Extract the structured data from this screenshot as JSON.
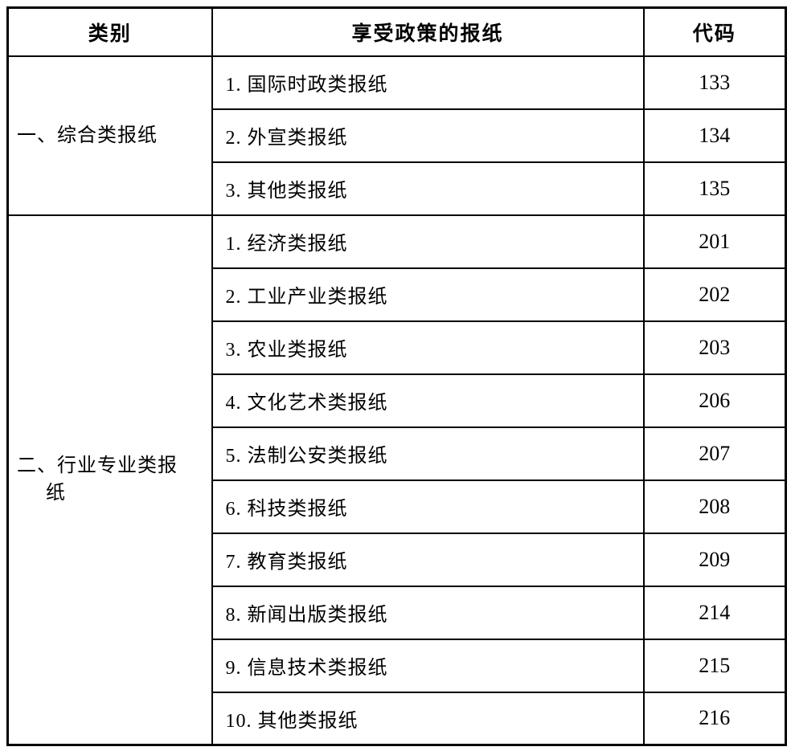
{
  "table": {
    "header": {
      "category": "类别",
      "newspaper": "享受政策的报纸",
      "code": "代码"
    },
    "groups": [
      {
        "category": "一、综合类报纸",
        "items": [
          {
            "name": "1. 国际时政类报纸",
            "code": "133"
          },
          {
            "name": "2. 外宣类报纸",
            "code": "134"
          },
          {
            "name": "3. 其他类报纸",
            "code": "135"
          }
        ]
      },
      {
        "category": "二、行业专业类报纸",
        "items": [
          {
            "name": "1. 经济类报纸",
            "code": "201"
          },
          {
            "name": "2. 工业产业类报纸",
            "code": "202"
          },
          {
            "name": "3. 农业类报纸",
            "code": "203"
          },
          {
            "name": "4. 文化艺术类报纸",
            "code": "206"
          },
          {
            "name": "5. 法制公安类报纸",
            "code": "207"
          },
          {
            "name": "6. 科技类报纸",
            "code": "208"
          },
          {
            "name": "7. 教育类报纸",
            "code": "209"
          },
          {
            "name": "8. 新闻出版类报纸",
            "code": "214"
          },
          {
            "name": "9. 信息技术类报纸",
            "code": "215"
          },
          {
            "name": "10. 其他类报纸",
            "code": "216"
          }
        ]
      }
    ],
    "colors": {
      "border": "#000000",
      "text": "#000000",
      "background": "#ffffff"
    }
  }
}
